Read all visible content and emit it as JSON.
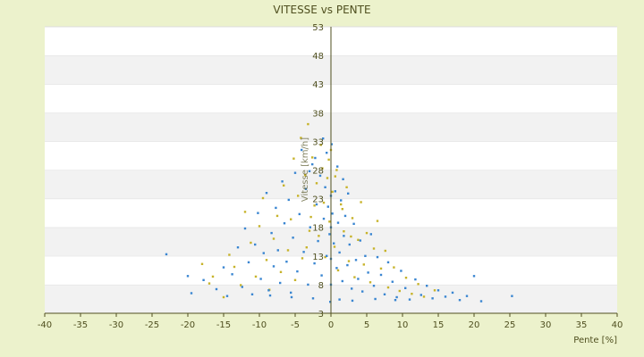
{
  "chart_data": {
    "type": "scatter",
    "title": "VITESSE vs PENTE",
    "xlabel": "Pente [%]",
    "ylabel": "Vitesse [km/h]",
    "xlim": [
      -40,
      40
    ],
    "ylim": [
      3,
      53
    ],
    "x_ticks": [
      "-40",
      "-35",
      "-30",
      "-25",
      "-20",
      "-15",
      "-10",
      "-5",
      "0",
      "5",
      "10",
      "15",
      "20",
      "25",
      "30",
      "35",
      "40"
    ],
    "y_ticks": [
      "3",
      "8",
      "13",
      "18",
      "23",
      "28",
      "33",
      "38",
      "43",
      "48",
      "53"
    ],
    "grid": "alternating horizontal bands",
    "series": [
      {
        "color": "#c7b32b",
        "points": [
          [
            -18.0,
            11.6
          ],
          [
            -17.0,
            8.2
          ],
          [
            -16.5,
            9.4
          ],
          [
            -15.0,
            5.8
          ],
          [
            -14.2,
            13.2
          ],
          [
            -13.5,
            11.1
          ],
          [
            -12.6,
            7.9
          ],
          [
            -12.0,
            20.7
          ],
          [
            -11.2,
            15.3
          ],
          [
            -10.5,
            9.4
          ],
          [
            -10.0,
            18.2
          ],
          [
            -9.5,
            23.1
          ],
          [
            -9.0,
            12.3
          ],
          [
            -8.6,
            7.1
          ],
          [
            -8.0,
            16.0
          ],
          [
            -7.5,
            20.0
          ],
          [
            -7.0,
            10.2
          ],
          [
            -6.6,
            25.3
          ],
          [
            -6.0,
            14.0
          ],
          [
            -5.6,
            19.4
          ],
          [
            -5.2,
            30.0
          ],
          [
            -5.0,
            8.8
          ],
          [
            -4.6,
            23.5
          ],
          [
            -4.2,
            33.6
          ],
          [
            -4.0,
            12.6
          ],
          [
            -3.6,
            27.1
          ],
          [
            -3.2,
            36.0
          ],
          [
            -3.0,
            17.4
          ],
          [
            -2.6,
            30.2
          ],
          [
            -2.3,
            21.8
          ],
          [
            -2.0,
            25.7
          ],
          [
            -1.7,
            16.5
          ],
          [
            -1.4,
            32.4
          ],
          [
            -1.0,
            22.3
          ],
          [
            -0.8,
            12.8
          ],
          [
            -0.5,
            26.6
          ],
          [
            -0.2,
            19.0
          ],
          [
            0.2,
            24.2
          ],
          [
            0.5,
            14.6
          ],
          [
            0.8,
            28.0
          ],
          [
            1.0,
            10.5
          ],
          [
            1.4,
            22.0
          ],
          [
            1.8,
            17.3
          ],
          [
            2.2,
            25.0
          ],
          [
            2.5,
            12.1
          ],
          [
            3.0,
            19.6
          ],
          [
            3.3,
            9.3
          ],
          [
            3.8,
            15.8
          ],
          [
            4.2,
            22.4
          ],
          [
            4.6,
            11.5
          ],
          [
            5.0,
            17.0
          ],
          [
            5.5,
            8.4
          ],
          [
            6.0,
            14.3
          ],
          [
            6.5,
            19.1
          ],
          [
            7.0,
            10.8
          ],
          [
            7.6,
            13.9
          ],
          [
            8.0,
            7.5
          ],
          [
            8.8,
            11.0
          ],
          [
            9.6,
            6.9
          ],
          [
            10.5,
            9.2
          ],
          [
            11.3,
            6.4
          ],
          [
            12.2,
            8.1
          ],
          [
            13.0,
            5.9
          ],
          [
            14.5,
            7.0
          ],
          [
            0.0,
            31.5
          ],
          [
            -0.3,
            29.8
          ],
          [
            -1.2,
            28.3
          ],
          [
            0.6,
            26.9
          ],
          [
            1.6,
            21.2
          ],
          [
            2.8,
            16.4
          ],
          [
            -2.8,
            19.8
          ],
          [
            -3.4,
            14.5
          ]
        ]
      },
      {
        "color": "#3a86d1",
        "points": [
          [
            -23.0,
            13.3
          ],
          [
            -20.0,
            9.5
          ],
          [
            -19.5,
            6.5
          ],
          [
            -17.8,
            8.8
          ],
          [
            -16.0,
            7.2
          ],
          [
            -15.0,
            11.0
          ],
          [
            -14.5,
            6.0
          ],
          [
            -13.8,
            9.8
          ],
          [
            -13.0,
            14.5
          ],
          [
            -12.4,
            7.6
          ],
          [
            -12.0,
            17.8
          ],
          [
            -11.5,
            11.9
          ],
          [
            -11.0,
            6.3
          ],
          [
            -10.6,
            15.0
          ],
          [
            -10.2,
            20.5
          ],
          [
            -9.8,
            9.0
          ],
          [
            -9.4,
            13.5
          ],
          [
            -9.0,
            24.0
          ],
          [
            -8.7,
            7.0
          ],
          [
            -8.3,
            17.0
          ],
          [
            -8.0,
            11.2
          ],
          [
            -7.7,
            21.4
          ],
          [
            -7.4,
            14.0
          ],
          [
            -7.1,
            8.3
          ],
          [
            -6.8,
            26.0
          ],
          [
            -6.5,
            18.7
          ],
          [
            -6.2,
            12.0
          ],
          [
            -5.9,
            22.8
          ],
          [
            -5.6,
            6.6
          ],
          [
            -5.3,
            16.2
          ],
          [
            -5.0,
            27.5
          ],
          [
            -4.7,
            10.3
          ],
          [
            -4.4,
            20.3
          ],
          [
            -4.1,
            31.5
          ],
          [
            -3.8,
            13.7
          ],
          [
            -3.5,
            24.7
          ],
          [
            -3.2,
            8.0
          ],
          [
            -2.9,
            18.0
          ],
          [
            -2.6,
            29.0
          ],
          [
            -2.3,
            11.7
          ],
          [
            -2.0,
            22.0
          ],
          [
            -1.8,
            15.6
          ],
          [
            -1.5,
            27.0
          ],
          [
            -1.3,
            9.6
          ],
          [
            -1.0,
            19.5
          ],
          [
            -0.8,
            25.0
          ],
          [
            -0.6,
            13.0
          ],
          [
            -0.4,
            21.6
          ],
          [
            -0.2,
            16.8
          ],
          [
            0.0,
            23.5
          ],
          [
            0.0,
            18.0
          ],
          [
            0.0,
            12.5
          ],
          [
            0.0,
            8.0
          ],
          [
            0.2,
            20.4
          ],
          [
            0.4,
            15.2
          ],
          [
            0.6,
            24.3
          ],
          [
            0.8,
            10.9
          ],
          [
            1.0,
            18.8
          ],
          [
            1.2,
            13.6
          ],
          [
            1.4,
            22.7
          ],
          [
            1.6,
            8.6
          ],
          [
            1.8,
            16.5
          ],
          [
            2.0,
            20.0
          ],
          [
            2.3,
            11.4
          ],
          [
            2.6,
            15.0
          ],
          [
            2.9,
            7.3
          ],
          [
            3.2,
            18.6
          ],
          [
            3.5,
            12.3
          ],
          [
            3.8,
            9.0
          ],
          [
            4.1,
            15.7
          ],
          [
            4.4,
            6.8
          ],
          [
            4.8,
            13.0
          ],
          [
            5.2,
            10.1
          ],
          [
            5.6,
            16.8
          ],
          [
            6.0,
            7.8
          ],
          [
            6.5,
            12.8
          ],
          [
            7.0,
            9.7
          ],
          [
            7.5,
            6.3
          ],
          [
            8.0,
            11.9
          ],
          [
            8.6,
            8.5
          ],
          [
            9.2,
            5.8
          ],
          [
            9.8,
            10.4
          ],
          [
            10.4,
            7.4
          ],
          [
            11.0,
            5.4
          ],
          [
            11.8,
            8.9
          ],
          [
            12.6,
            6.2
          ],
          [
            13.4,
            7.8
          ],
          [
            14.2,
            5.6
          ],
          [
            15.0,
            7.0
          ],
          [
            16.0,
            5.9
          ],
          [
            17.0,
            6.6
          ],
          [
            18.0,
            5.3
          ],
          [
            19.0,
            6.0
          ],
          [
            20.0,
            9.5
          ],
          [
            21.0,
            5.1
          ],
          [
            25.3,
            6.0
          ],
          [
            -1.1,
            33.5
          ],
          [
            -0.6,
            31.0
          ],
          [
            0.1,
            32.5
          ],
          [
            -2.2,
            30.1
          ],
          [
            0.9,
            28.6
          ],
          [
            -3.0,
            27.8
          ],
          [
            1.7,
            26.4
          ],
          [
            2.4,
            23.9
          ],
          [
            -0.1,
            5.0
          ],
          [
            1.2,
            5.4
          ],
          [
            3.0,
            5.2
          ],
          [
            -2.5,
            5.6
          ],
          [
            -5.5,
            5.8
          ],
          [
            -8.5,
            6.1
          ],
          [
            6.2,
            5.5
          ],
          [
            9.0,
            5.3
          ]
        ]
      }
    ]
  }
}
